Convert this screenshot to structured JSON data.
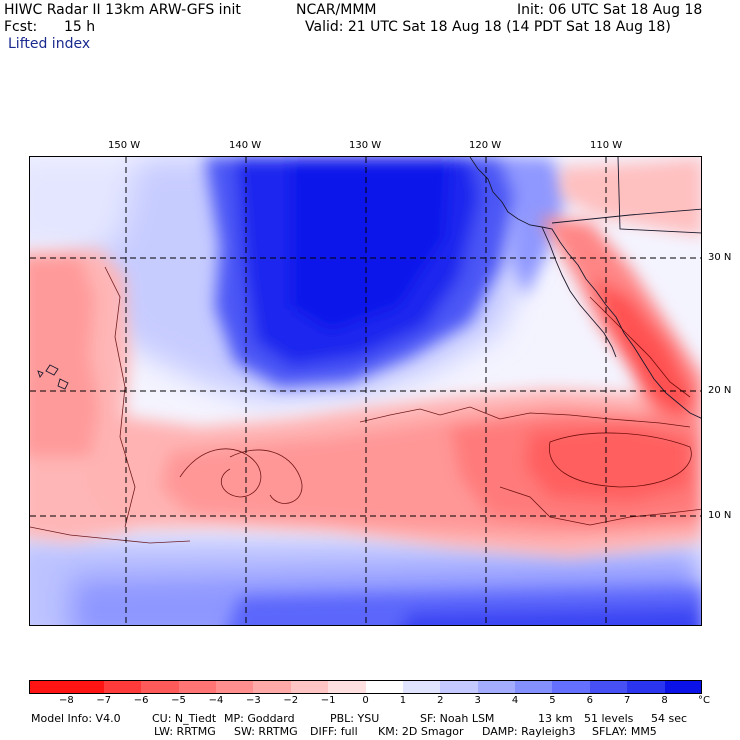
{
  "header": {
    "model": "HIWC Radar II 13km ARW-GFS init",
    "center": "NCAR/MMM",
    "init": "Init: 06 UTC Sat 18 Aug 18",
    "fcst_label": "Fcst:",
    "fcst_value": "15 h",
    "valid": "Valid: 21 UTC Sat 18 Aug 18 (14 PDT Sat 18 Aug 18)",
    "field": "Lifted index"
  },
  "map": {
    "lon_labels": [
      "150 W",
      "140 W",
      "130 W",
      "120 W",
      "110 W"
    ],
    "lat_labels": [
      "30 N",
      "20 N",
      "10 N"
    ]
  },
  "colorbar": {
    "ticks": [
      "−8",
      "−7",
      "−6",
      "−5",
      "−4",
      "−3",
      "−2",
      "−1",
      "0",
      "1",
      "2",
      "3",
      "4",
      "5",
      "6",
      "7",
      "8"
    ],
    "unit": "°C",
    "colors": [
      "#ff1414",
      "#ff3a3a",
      "#ff5a5a",
      "#ff7575",
      "#ff8f8f",
      "#ffa9a9",
      "#ffc4c4",
      "#ffe0e0",
      "#ffffff",
      "#e0e4ff",
      "#c4caff",
      "#a4acff",
      "#8590ff",
      "#6670ff",
      "#4750f5",
      "#2b34ef",
      "#0a12e8"
    ]
  },
  "footer": {
    "line1": {
      "model_info": "Model Info: V4.0",
      "cu": "CU: N_Tiedt",
      "mp": "MP: Goddard",
      "pbl": "PBL: YSU",
      "sf": "SF: Noah LSM",
      "res": "13 km",
      "levels": "51 levels",
      "dt": "54 sec"
    },
    "line2": {
      "lw": "LW: RRTMG",
      "sw": "SW: RRTMG",
      "diff": "DIFF: full",
      "km": "KM: 2D Smagor",
      "damp": "DAMP: Rayleigh3",
      "sflay": "SFLAY: MM5"
    }
  }
}
